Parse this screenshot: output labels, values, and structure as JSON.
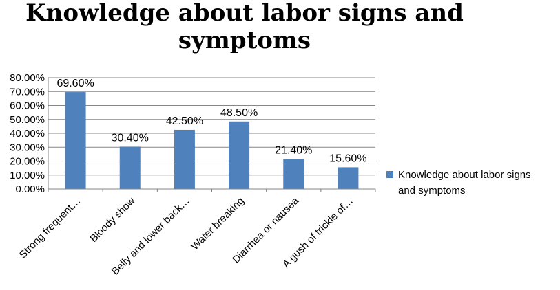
{
  "chart_data": {
    "type": "bar",
    "title": "Knowledge about labor signs and symptoms",
    "categories": [
      "Strong frequent…",
      "Bloody show",
      "Belly and lower back…",
      "Water breaking",
      "Diarrhea or nausea",
      "A gush of trickle of…"
    ],
    "series": [
      {
        "name": "Knowledge about labor signs and symptoms",
        "values": [
          69.6,
          30.4,
          42.5,
          48.5,
          21.4,
          15.6
        ],
        "labels": [
          "69.60%",
          "30.40%",
          "42.50%",
          "48.50%",
          "21.40%",
          "15.60%"
        ],
        "color": "#4f81bd"
      }
    ],
    "ylim": [
      0,
      80
    ],
    "yticks": [
      "0.00%",
      "10.00%",
      "20.00%",
      "30.00%",
      "40.00%",
      "50.00%",
      "60.00%",
      "70.00%",
      "80.00%"
    ],
    "grid": true,
    "legend": {
      "position": "right",
      "lines": [
        "Knowledge about labor signs",
        "and symptoms"
      ]
    }
  }
}
